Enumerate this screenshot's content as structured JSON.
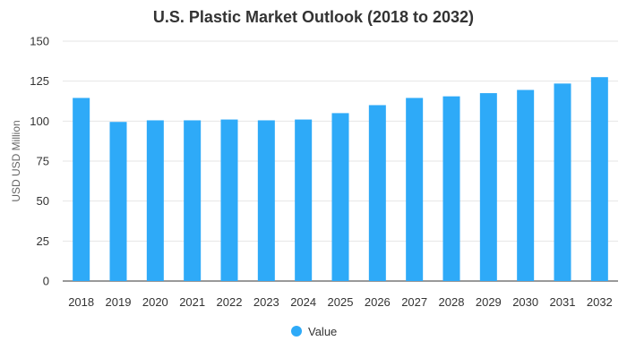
{
  "chart_data": {
    "type": "bar",
    "title": "U.S. Plastic Market Outlook (2018 to 2032)",
    "xlabel": "",
    "ylabel": "USD USD Million",
    "categories": [
      "2018",
      "2019",
      "2020",
      "2021",
      "2022",
      "2023",
      "2024",
      "2025",
      "2026",
      "2027",
      "2028",
      "2029",
      "2030",
      "2031",
      "2032"
    ],
    "series": [
      {
        "name": "Value",
        "values": [
          114.5,
          99.5,
          100.5,
          100.5,
          101,
          100.5,
          101,
          105,
          110,
          114.5,
          115.5,
          117.5,
          119.5,
          123.5,
          127.5
        ]
      }
    ],
    "ylim": [
      0,
      150
    ],
    "yticks": [
      0,
      25,
      50,
      75,
      100,
      125,
      150
    ],
    "grid": true,
    "legend": "bottom-center",
    "colors": {
      "bar": "#2eaaf8",
      "grid": "#e6e6e6",
      "axis": "#333333"
    }
  }
}
